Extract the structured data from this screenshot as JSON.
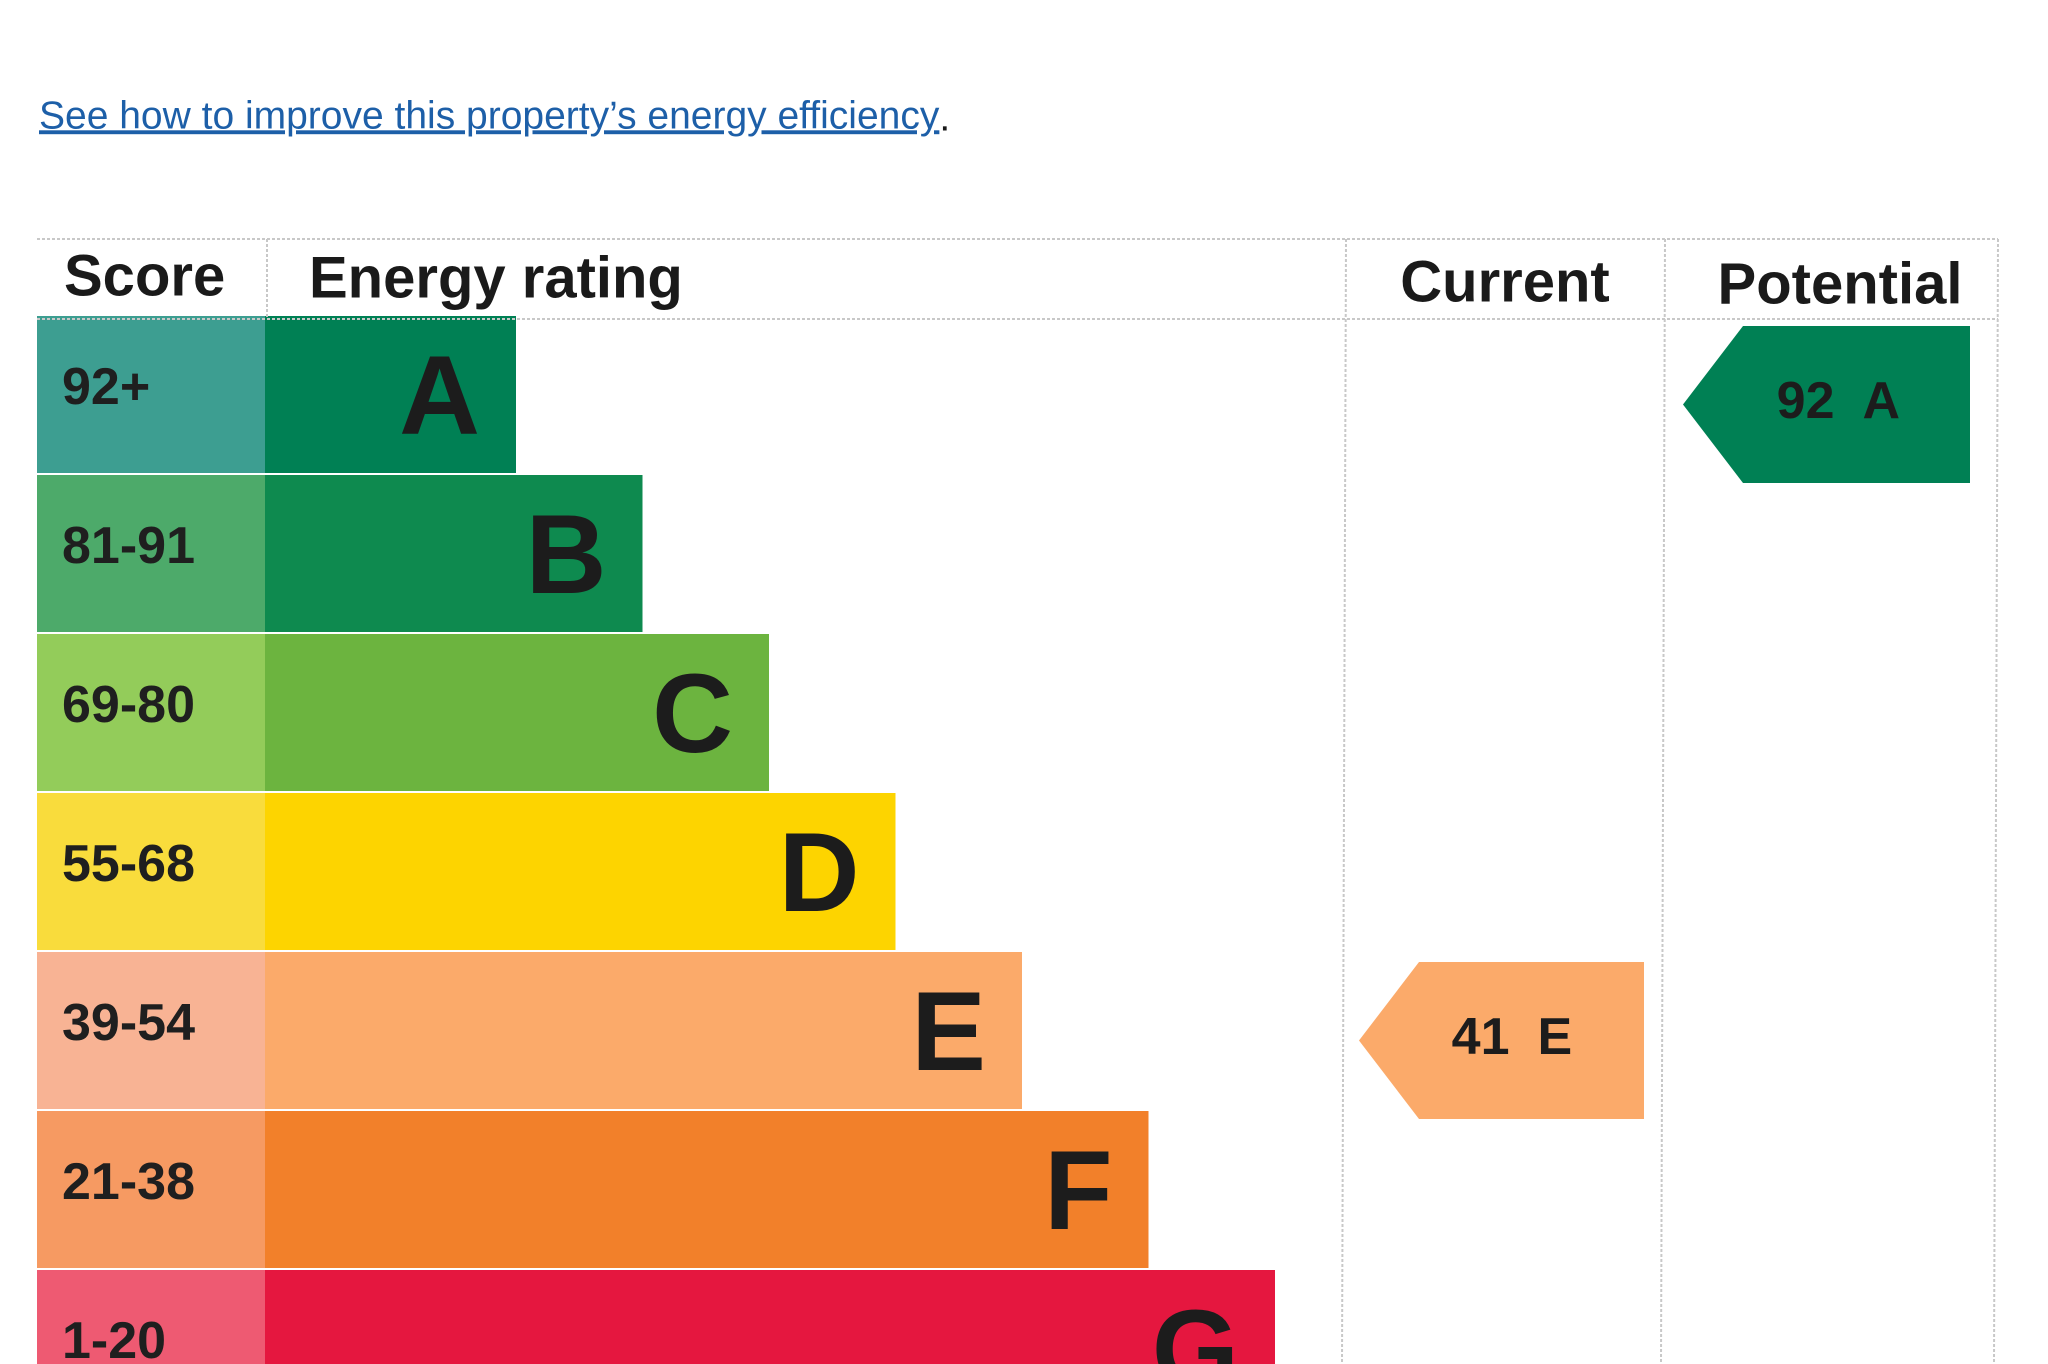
{
  "link": {
    "text": "See how to improve this property’s energy efficiency",
    "suffix": "."
  },
  "table": {
    "headers": [
      "Score",
      "Energy rating",
      "Current",
      "Potential"
    ],
    "rows": [
      {
        "score": "92+",
        "band": "A",
        "color": "#008054",
        "tint": "#3d9e91"
      },
      {
        "score": "81-91",
        "band": "B",
        "color": "#0e8a4f",
        "tint": "#4daa6a"
      },
      {
        "score": "69-80",
        "band": "C",
        "color": "#6cb43f",
        "tint": "#93cc5a"
      },
      {
        "score": "55-68",
        "band": "D",
        "color": "#fdd400",
        "tint": "#f9dc3c"
      },
      {
        "score": "39-54",
        "band": "E",
        "color": "#fbaa6a",
        "tint": "#f8b394"
      },
      {
        "score": "21-38",
        "band": "F",
        "color": "#f2802a",
        "tint": "#f69a62"
      },
      {
        "score": "1-20",
        "band": "G",
        "color": "#e5173f",
        "tint": "#ee5a72"
      }
    ],
    "current": {
      "score": 41,
      "band": "E"
    },
    "potential": {
      "score": 92,
      "band": "A"
    }
  }
}
